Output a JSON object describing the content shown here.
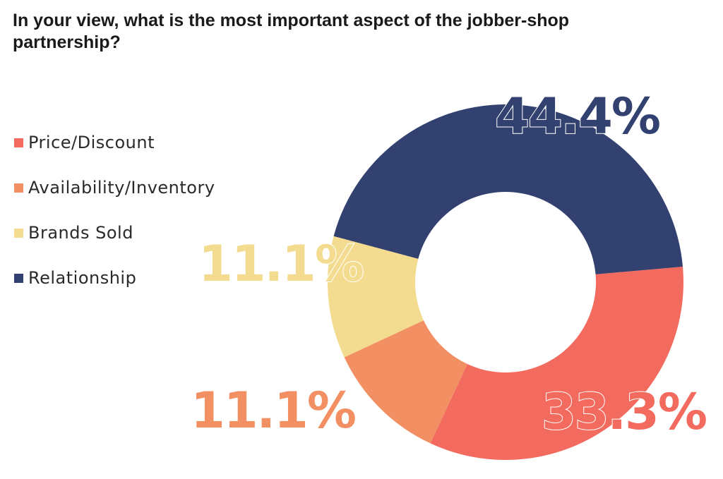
{
  "chart_data": {
    "type": "pie",
    "title": "In your view, what is the most important aspect of the jobber-shop partnership?",
    "categories": [
      "Price/Discount",
      "Availability/Inventory",
      "Brands Sold",
      "Relationship"
    ],
    "values": [
      33.3,
      11.1,
      11.1,
      44.4
    ],
    "data_labels": [
      "33.3%",
      "11.1%",
      "11.1%",
      "44.4%"
    ],
    "colors": [
      "#f26b5e",
      "#f28f63",
      "#f3dc8f",
      "#334170"
    ],
    "donut": true,
    "legend_position": "left"
  }
}
